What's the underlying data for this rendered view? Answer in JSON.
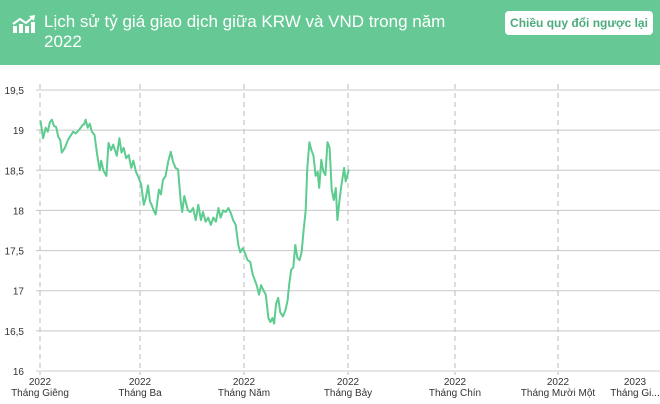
{
  "header": {
    "title": "Lịch sử tỷ giá giao dịch giữa KRW và VND trong năm 2022",
    "icon": "chart-trend-up-icon",
    "reverse_button_label": "Chiều quy đổi ngược lại",
    "background_color": "#66c995"
  },
  "chart_data": {
    "type": "line",
    "title": "Lịch sử tỷ giá giao dịch giữa KRW và VND trong năm 2022",
    "xlabel": "",
    "ylabel": "",
    "ylim": [
      16,
      19.5
    ],
    "yticks": [
      "19,5",
      "19",
      "18,5",
      "18",
      "17,5",
      "17",
      "16,5",
      "16"
    ],
    "ytick_values": [
      19.5,
      19,
      18.5,
      18,
      17.5,
      17,
      16.5,
      16
    ],
    "xticks": [
      {
        "year": "2022",
        "month": "Tháng Giêng"
      },
      {
        "year": "2022",
        "month": "Tháng Ba"
      },
      {
        "year": "2022",
        "month": "Tháng Năm"
      },
      {
        "year": "2022",
        "month": "Tháng Bảy"
      },
      {
        "year": "2022",
        "month": "Tháng Chín"
      },
      {
        "year": "2022",
        "month": "Tháng Mười Một"
      },
      {
        "year": "2023",
        "month": "Tháng Gi..."
      }
    ],
    "grid": true,
    "line_color": "#5ccc8f",
    "series": [
      {
        "name": "KRW/VND",
        "x_month_fraction": [
          0.01,
          0.06,
          0.11,
          0.15,
          0.19,
          0.23,
          0.27,
          0.31,
          0.35,
          0.39,
          0.42,
          0.48,
          0.54,
          0.6,
          0.64,
          0.69,
          0.75,
          0.83,
          0.85,
          0.88,
          0.92,
          0.96,
          1.0,
          1.05,
          1.1,
          1.15,
          1.18,
          1.22,
          1.28,
          1.32,
          1.37,
          1.41,
          1.48,
          1.53,
          1.57,
          1.61,
          1.66,
          1.71,
          1.76,
          1.8,
          1.85,
          1.9,
          1.95,
          2.0,
          2.04,
          2.08,
          2.12,
          2.15,
          2.19,
          2.23,
          2.29,
          2.33,
          2.37,
          2.42,
          2.47,
          2.52,
          2.56,
          2.61,
          2.66,
          2.71,
          2.74,
          2.78,
          2.85,
          2.9,
          2.95,
          3.0,
          3.05,
          3.1,
          3.14,
          3.19,
          3.24,
          3.29,
          3.34,
          3.39,
          3.44,
          3.48,
          3.53,
          3.58,
          3.63,
          3.68,
          3.72,
          3.77,
          3.82,
          3.86,
          3.91,
          3.96,
          4.0,
          4.05,
          4.1,
          4.14,
          4.18,
          4.22,
          4.26,
          4.3,
          4.35,
          4.4,
          4.44,
          4.48,
          4.51,
          4.55,
          4.59,
          4.63,
          4.68,
          4.73,
          4.77,
          4.8,
          4.84,
          4.88,
          4.92,
          4.96,
          5.0,
          5.04,
          5.08,
          5.12,
          5.15,
          5.19,
          5.23,
          5.27,
          5.31,
          5.35,
          5.38,
          5.42,
          5.46,
          5.5,
          5.54,
          5.58,
          5.62,
          5.66,
          5.7,
          5.73,
          5.77,
          5.81,
          5.86,
          5.89,
          5.95
        ],
        "values": [
          19.12,
          18.9,
          19.03,
          18.98,
          19.1,
          19.13,
          19.05,
          19.04,
          18.92,
          18.88,
          18.72,
          18.78,
          18.88,
          18.94,
          18.98,
          18.96,
          19.0,
          19.07,
          19.07,
          19.13,
          19.03,
          19.08,
          18.98,
          18.94,
          18.7,
          18.5,
          18.62,
          18.5,
          18.43,
          18.84,
          18.75,
          18.82,
          18.68,
          18.9,
          18.72,
          18.78,
          18.65,
          18.69,
          18.53,
          18.62,
          18.48,
          18.41,
          18.32,
          18.07,
          18.16,
          18.31,
          18.11,
          18.07,
          18.0,
          17.95,
          18.26,
          18.2,
          18.38,
          18.43,
          18.61,
          18.73,
          18.61,
          18.53,
          18.51,
          18.13,
          17.98,
          18.18,
          18.0,
          17.98,
          18.03,
          17.88,
          18.07,
          17.88,
          17.98,
          17.86,
          17.91,
          17.82,
          17.91,
          17.86,
          18.03,
          17.91,
          18.0,
          17.98,
          18.03,
          17.96,
          17.88,
          17.82,
          17.57,
          17.48,
          17.53,
          17.45,
          17.38,
          17.36,
          17.2,
          17.13,
          17.06,
          16.95,
          17.07,
          17.01,
          16.95,
          16.66,
          16.61,
          16.66,
          16.59,
          16.84,
          16.91,
          16.73,
          16.68,
          16.76,
          16.88,
          17.07,
          17.26,
          17.29,
          17.57,
          17.41,
          17.38,
          17.48,
          17.76,
          18.0,
          18.53,
          18.85,
          18.75,
          18.68,
          18.43,
          18.48,
          18.28,
          18.63,
          18.48,
          18.44,
          18.85,
          18.78,
          18.26,
          18.13,
          18.28,
          17.88,
          18.13,
          18.32,
          18.53,
          18.36,
          18.51,
          18.53,
          18.75
        ]
      }
    ]
  }
}
